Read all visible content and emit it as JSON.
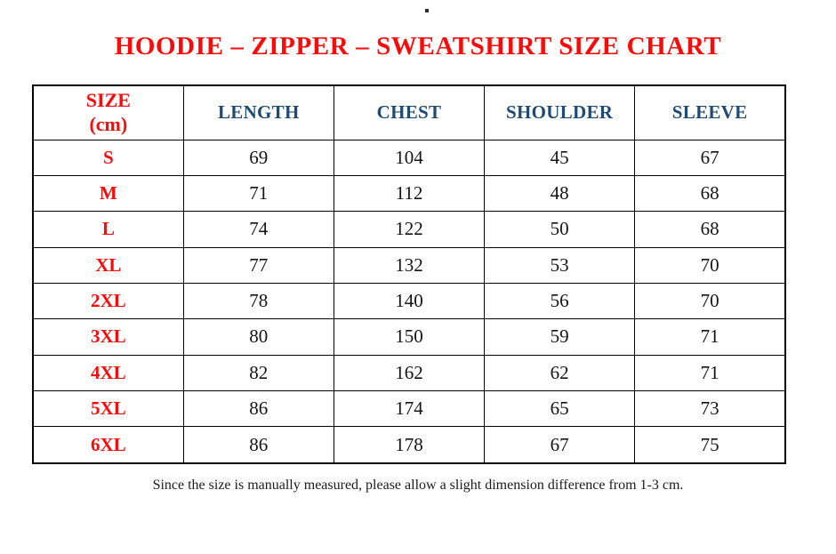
{
  "stray_dot": ".",
  "title": "HOODIE – ZIPPER – SWEATSHIRT SIZE CHART",
  "table": {
    "header": {
      "size_line1": "SIZE",
      "size_line2": "(cm)",
      "columns": [
        "LENGTH",
        "CHEST",
        "SHOULDER",
        "SLEEVE"
      ]
    },
    "rows": [
      [
        "S",
        "69",
        "104",
        "45",
        "67"
      ],
      [
        "M",
        "71",
        "112",
        "48",
        "68"
      ],
      [
        "L",
        "74",
        "122",
        "50",
        "68"
      ],
      [
        "XL",
        "77",
        "132",
        "53",
        "70"
      ],
      [
        "2XL",
        "78",
        "140",
        "56",
        "70"
      ],
      [
        "3XL",
        "80",
        "150",
        "59",
        "71"
      ],
      [
        "4XL",
        "82",
        "162",
        "62",
        "71"
      ],
      [
        "5XL",
        "86",
        "174",
        "65",
        "73"
      ],
      [
        "6XL",
        "86",
        "178",
        "67",
        "75"
      ]
    ]
  },
  "footer_note": "Since the size is manually measured, please allow a slight dimension difference from 1-3 cm.",
  "colors": {
    "title_red": "#fa0a0a",
    "header_blue": "#1f4a73",
    "text_black": "#141414",
    "border_black": "#000000"
  }
}
